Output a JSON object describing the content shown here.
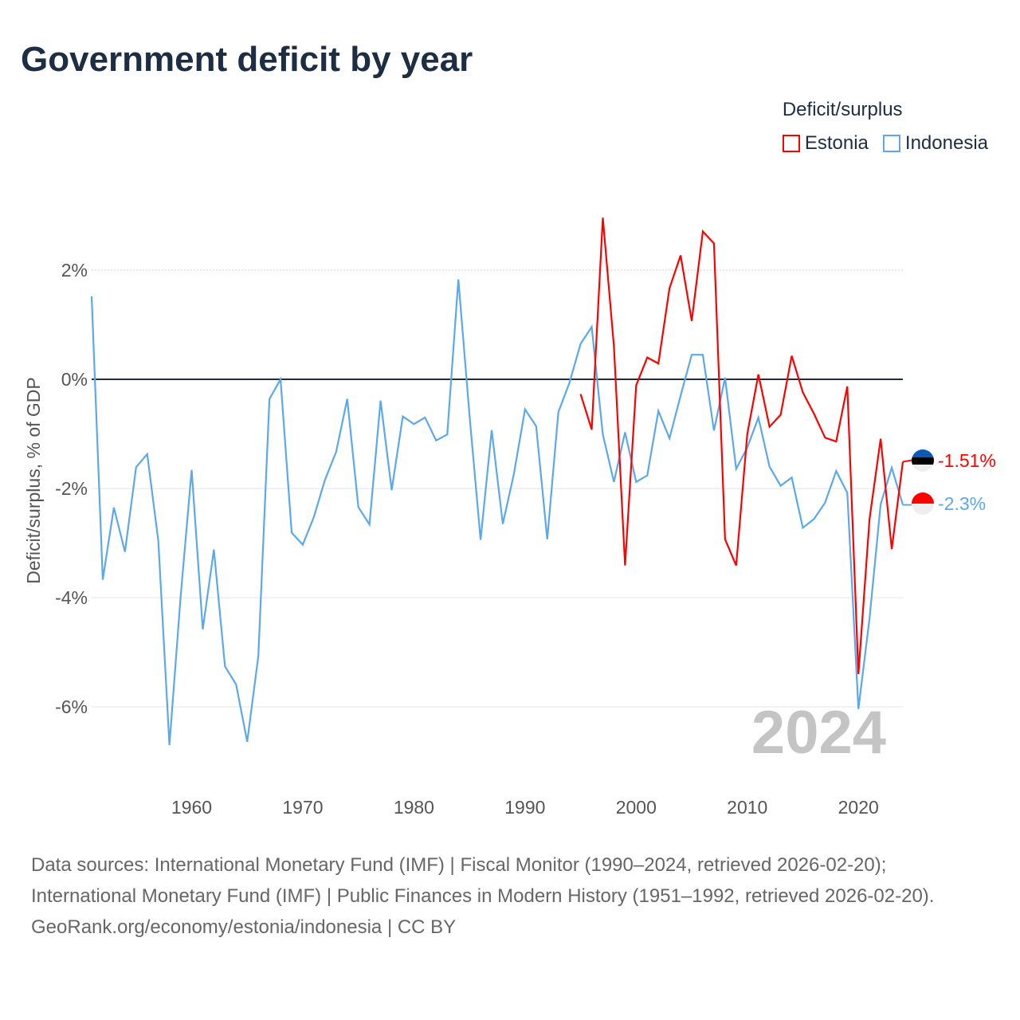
{
  "title": "Government deficit by year",
  "legend": {
    "title": "Deficit/surplus",
    "items": [
      {
        "label": "Estonia",
        "color": "#ff0000"
      },
      {
        "label": "Indonesia",
        "color": "#5ba8ec"
      }
    ]
  },
  "year_watermark": "2024",
  "end_labels": {
    "estonia": "-1.51%",
    "indonesia": "-2.3%"
  },
  "flags": {
    "estonia": "estonia-flag-icon",
    "indonesia": "indonesia-flag-icon"
  },
  "footer": {
    "sources": "Data sources: International Monetary Fund (IMF) | Fiscal Monitor (1990–2024, retrieved 2026-02-20); International Monetary Fund (IMF) | Public Finances in Modern History (1951–1992, retrieved 2026-02-20).",
    "credit": "GeoRank.org/economy/estonia/indonesia | CC BY"
  },
  "chart_data": {
    "type": "line",
    "title": "Government deficit by year",
    "xlabel": "",
    "ylabel": "Deficit/surplus, % of GDP",
    "xlim": [
      1951,
      2024
    ],
    "ylim": [
      -7,
      3.2
    ],
    "x_ticks": [
      1960,
      1970,
      1980,
      1990,
      2000,
      2010,
      2020
    ],
    "y_ticks": [
      2,
      0,
      -2,
      -4,
      -6
    ],
    "y_tick_labels": [
      "2%",
      "0%",
      "-2%",
      "-4%",
      "-6%"
    ],
    "grid": true,
    "legend_position": "top-right",
    "series": [
      {
        "name": "Indonesia",
        "color": "#5ba8ec",
        "start_year": 1951,
        "values": [
          1.52,
          -3.67,
          -2.35,
          -3.16,
          -1.61,
          -1.37,
          -2.96,
          -6.7,
          -4.0,
          -1.66,
          -4.58,
          -3.12,
          -5.26,
          -5.59,
          -6.64,
          -5.07,
          -0.36,
          0.0,
          -2.81,
          -3.03,
          -2.52,
          -1.84,
          -1.33,
          -0.36,
          -2.34,
          -2.66,
          -0.39,
          -2.03,
          -0.68,
          -0.82,
          -0.7,
          -1.12,
          -1.01,
          1.83,
          -0.65,
          -2.94,
          -0.93,
          -2.65,
          -1.73,
          -0.55,
          -0.86,
          -2.93,
          -0.6,
          -0.06,
          0.65,
          0.96,
          -1.01,
          -1.88,
          -0.97,
          -1.88,
          -1.76,
          -0.58,
          -1.08,
          -0.3,
          0.45,
          0.45,
          -0.94,
          0.03,
          -1.64,
          -1.25,
          -0.7,
          -1.6,
          -1.95,
          -1.8,
          -2.72,
          -2.56,
          -2.26,
          -1.68,
          -2.08,
          -6.04,
          -4.38,
          -2.29,
          -1.62,
          -2.3
        ]
      },
      {
        "name": "Estonia",
        "color": "#ff0000",
        "start_year": 1995,
        "values": [
          -0.27,
          -0.92,
          2.96,
          0.6,
          -3.41,
          -0.11,
          0.4,
          0.29,
          1.67,
          2.27,
          1.07,
          2.71,
          2.49,
          -2.93,
          -3.41,
          -1.0,
          0.09,
          -0.87,
          -0.65,
          0.43,
          -0.24,
          -0.63,
          -1.07,
          -1.14,
          -0.13,
          -5.4,
          -2.56,
          -1.09,
          -3.11,
          -1.51
        ]
      }
    ]
  }
}
